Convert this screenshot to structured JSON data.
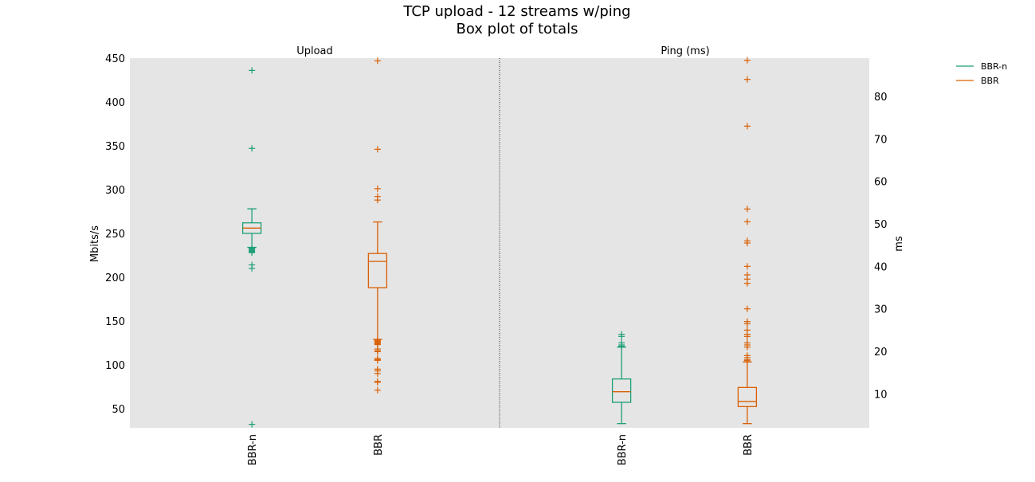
{
  "chart_data": {
    "type": "box",
    "title": "TCP upload - 12 streams w/ping",
    "subtitle": "Box plot of totals",
    "legend": {
      "placement": "top-right",
      "entries": [
        {
          "name": "BBR-n",
          "color": "#1b9e77"
        },
        {
          "name": "BBR",
          "color": "#d95f02"
        }
      ]
    },
    "panels": [
      {
        "title": "Upload",
        "ylabel": "Mbits/s",
        "axis_side": "left",
        "ylim": [
          28,
          450
        ],
        "yticks": [
          50,
          100,
          150,
          200,
          250,
          300,
          350,
          400,
          450
        ],
        "categories": [
          "BBR-n",
          "BBR"
        ],
        "boxes": [
          {
            "name": "BBR-n",
            "color": "#1b9e77",
            "whislo": 234,
            "q1": 250,
            "med": 256,
            "q3": 262,
            "whishi": 278,
            "fliers": [
              436,
              347,
              233,
              232,
              231,
              230,
              229,
              228,
              214,
              210,
              32
            ]
          },
          {
            "name": "BBR",
            "color": "#d95f02",
            "whislo": 129,
            "q1": 188,
            "med": 218,
            "q3": 227,
            "whishi": 263,
            "fliers": [
              447,
              346,
              301,
              292,
              288,
              128,
              127,
              126,
              125,
              124,
              123,
              118,
              116,
              115,
              107,
              106,
              105,
              95,
              93,
              90,
              81,
              80,
              71
            ]
          }
        ]
      },
      {
        "title": "Ping (ms)",
        "ylabel": "ms",
        "axis_side": "right",
        "ylim": [
          2,
          89
        ],
        "yticks": [
          10,
          20,
          30,
          40,
          50,
          60,
          70,
          80
        ],
        "categories": [
          "BBR-n",
          "BBR"
        ],
        "boxes": [
          {
            "name": "BBR-n",
            "color": "#1b9e77",
            "whislo": 3,
            "q1": 8,
            "med": 10.5,
            "q3": 13.5,
            "whishi": 21,
            "fliers": [
              24,
              23.5,
              22,
              21.5,
              21.2
            ]
          },
          {
            "name": "BBR",
            "color": "#d95f02",
            "whislo": 3,
            "q1": 7,
            "med": 8.2,
            "q3": 11.5,
            "whishi": 17.5,
            "fliers": [
              88.5,
              84,
              73,
              53.5,
              50.5,
              46,
              45.5,
              40,
              38,
              37,
              36,
              30,
              27,
              26.5,
              25,
              24,
              23.5,
              22,
              21.5,
              21,
              19,
              18.5,
              18,
              17.8
            ]
          }
        ]
      }
    ]
  }
}
